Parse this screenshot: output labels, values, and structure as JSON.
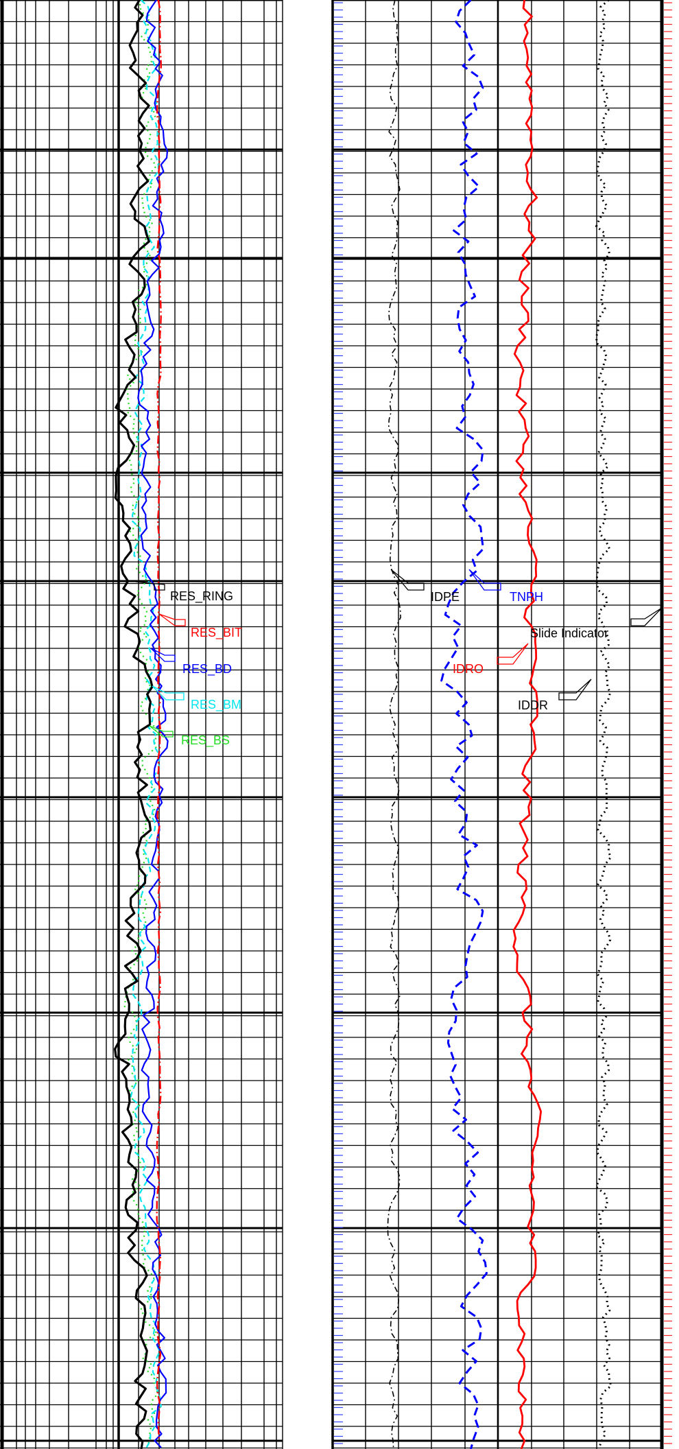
{
  "chart_data": {
    "type": "line",
    "description_free": true,
    "tracks": [
      {
        "id": "resistivity",
        "scale": "log",
        "grid": true,
        "curves": [
          {
            "name": "RES_RING",
            "color": "#000000",
            "style": "solid"
          },
          {
            "name": "RES_BIT",
            "color": "#ff0000",
            "style": "dash-dot"
          },
          {
            "name": "RES_BD",
            "color": "#0000ff",
            "style": "solid"
          },
          {
            "name": "RES_BM",
            "color": "#00e5ee",
            "style": "dashed"
          },
          {
            "name": "RES_BS",
            "color": "#22dd22",
            "style": "dotted"
          }
        ]
      },
      {
        "id": "density-neutron",
        "scale": "linear",
        "grid": true,
        "curves": [
          {
            "name": "IDPE",
            "color": "#000000",
            "style": "dash-dot"
          },
          {
            "name": "TNPH",
            "color": "#0000ff",
            "style": "dashed"
          },
          {
            "name": "IDRO",
            "color": "#ff0000",
            "style": "solid"
          },
          {
            "name": "IDDR",
            "color": "#000000",
            "style": "dotted"
          },
          {
            "name": "Slide Indicator",
            "color": "#ff0000",
            "style": "ticks"
          }
        ]
      }
    ],
    "labels": {
      "res_ring": "RES_RING",
      "res_bit": "RES_BIT",
      "res_bd": "RES_BD",
      "res_bm": "RES_BM",
      "res_bs": "RES_BS",
      "idpe": "IDPE",
      "tnph": "TNPH",
      "idro": "IDRO",
      "iddr": "IDDR",
      "slide": "Slide Indicator"
    }
  }
}
